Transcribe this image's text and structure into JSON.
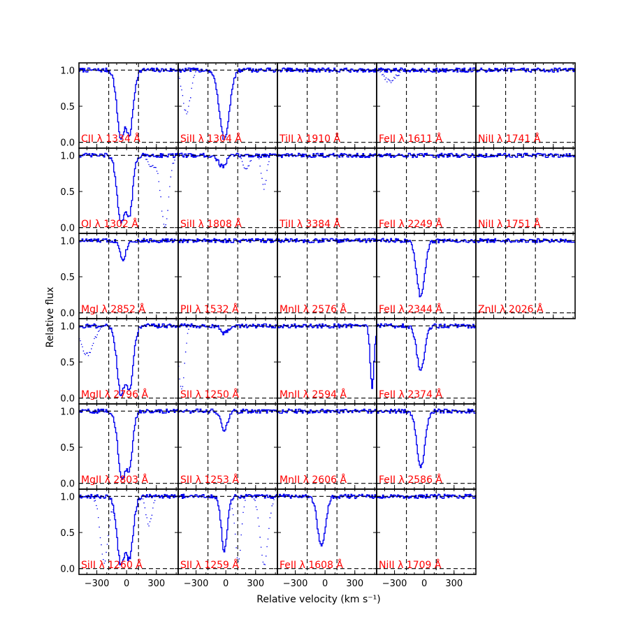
{
  "chart_data": {
    "type": "line",
    "xlabel": "Relative velocity (km s⁻¹)",
    "ylabel": "Relative flux",
    "xlim": [
      -480,
      520
    ],
    "ylim": [
      -0.08,
      1.1
    ],
    "xticks": [
      -300,
      0,
      300
    ],
    "xtick_labels": [
      "−300",
      "0",
      "300"
    ],
    "yticks": [
      0.0,
      0.5,
      1.0
    ],
    "ytick_labels": [
      "0.0",
      "0.5",
      "1.0"
    ],
    "velocity_window": [
      -180,
      120
    ],
    "series_color": "#0000ee",
    "label_color": "#ff0000",
    "columns": [
      [
        {
          "label": "CII λ 1334 Å",
          "absorption": [
            {
              "v": -60,
              "depth": 0.95,
              "width": 40
            },
            {
              "v": 20,
              "depth": 0.9,
              "width": 40
            }
          ],
          "blend": []
        },
        {
          "label": "OI λ 1302 Å",
          "absorption": [
            {
              "v": -60,
              "depth": 0.95,
              "width": 40
            },
            {
              "v": 20,
              "depth": 0.85,
              "width": 35
            }
          ],
          "blend": [
            {
              "v": 380,
              "depth": 0.98,
              "width": 40
            },
            {
              "v": 250,
              "depth": 0.15,
              "width": 40
            }
          ]
        },
        {
          "label": "MgI λ 2852 Å",
          "absorption": [
            {
              "v": -40,
              "depth": 0.25,
              "width": 30
            }
          ],
          "blend": []
        },
        {
          "label": "MgII λ 2796 Å",
          "absorption": [
            {
              "v": -60,
              "depth": 0.95,
              "width": 40
            },
            {
              "v": 20,
              "depth": 0.9,
              "width": 40
            }
          ],
          "blend": [
            {
              "v": -400,
              "depth": 0.4,
              "width": 60
            }
          ]
        },
        {
          "label": "MgII λ 2803 Å",
          "absorption": [
            {
              "v": -50,
              "depth": 0.95,
              "width": 40
            },
            {
              "v": 20,
              "depth": 0.8,
              "width": 35
            }
          ],
          "blend": []
        },
        {
          "label": "SiII λ 1260 Å",
          "absorption": [
            {
              "v": -60,
              "depth": 0.95,
              "width": 40
            },
            {
              "v": 20,
              "depth": 0.85,
              "width": 40
            }
          ],
          "blend": [
            {
              "v": -230,
              "depth": 0.9,
              "width": 40
            },
            {
              "v": 220,
              "depth": 0.4,
              "width": 30
            }
          ]
        }
      ],
      [
        {
          "label": "SiII λ 1304 Å",
          "absorption": [
            {
              "v": -20,
              "depth": 0.95,
              "width": 50
            }
          ],
          "blend": [
            {
              "v": -400,
              "depth": 0.6,
              "width": 40
            }
          ]
        },
        {
          "label": "SiII λ 1808 Å",
          "absorption": [
            {
              "v": -40,
              "depth": 0.15,
              "width": 40
            }
          ],
          "blend": [
            {
              "v": 380,
              "depth": 0.45,
              "width": 25
            },
            {
              "v": 200,
              "depth": 0.2,
              "width": 30
            }
          ]
        },
        {
          "label": "PII λ 1532 Å",
          "absorption": [],
          "blend": []
        },
        {
          "label": "SII λ 1250 Å",
          "absorption": [
            {
              "v": -20,
              "depth": 0.1,
              "width": 35
            }
          ],
          "blend": [
            {
              "v": -450,
              "depth": 0.9,
              "width": 30
            }
          ]
        },
        {
          "label": "SII λ 1253 Å",
          "absorption": [
            {
              "v": -20,
              "depth": 0.25,
              "width": 35
            }
          ],
          "blend": []
        },
        {
          "label": "SII λ 1259 Å",
          "absorption": [
            {
              "v": -20,
              "depth": 0.75,
              "width": 30
            }
          ],
          "blend": [
            {
              "v": 120,
              "depth": 0.9,
              "width": 30
            },
            {
              "v": 380,
              "depth": 0.95,
              "width": 40
            }
          ]
        }
      ],
      [
        {
          "label": "TiII λ 1910 Å",
          "absorption": [],
          "blend": []
        },
        {
          "label": "TiII λ 3384 Å",
          "absorption": [],
          "blend": []
        },
        {
          "label": "MnII λ 2576 Å",
          "absorption": [],
          "blend": []
        },
        {
          "label": "MnII λ 2594 Å",
          "absorption": [
            {
              "v": 470,
              "depth": 0.85,
              "width": 20
            }
          ],
          "blend": []
        },
        {
          "label": "MnII λ 2606 Å",
          "absorption": [],
          "blend": []
        },
        {
          "label": "FeII λ 1608 Å",
          "absorption": [
            {
              "v": -40,
              "depth": 0.7,
              "width": 40
            }
          ],
          "blend": []
        }
      ],
      [
        {
          "label": "FeII λ 1611 Å",
          "absorption": [],
          "blend": [
            {
              "v": -350,
              "depth": 0.15,
              "width": 60
            }
          ]
        },
        {
          "label": "FeII λ 2249 Å",
          "absorption": [],
          "blend": []
        },
        {
          "label": "FeII λ 2344 Å",
          "absorption": [
            {
              "v": -40,
              "depth": 0.78,
              "width": 40
            }
          ],
          "blend": []
        },
        {
          "label": "FeII λ 2374 Å",
          "absorption": [
            {
              "v": -40,
              "depth": 0.62,
              "width": 40
            }
          ],
          "blend": []
        },
        {
          "label": "FeII λ 2586 Å",
          "absorption": [
            {
              "v": -40,
              "depth": 0.78,
              "width": 40
            }
          ],
          "blend": []
        },
        {
          "label": "NiII λ 1709 Å",
          "absorption": [],
          "blend": []
        }
      ],
      [
        {
          "label": "NiII λ 1741 Å",
          "absorption": [],
          "blend": []
        },
        {
          "label": "NiII λ 1751 Å",
          "absorption": [],
          "blend": []
        },
        {
          "label": "ZnII λ 2026 Å",
          "absorption": [],
          "blend": []
        }
      ]
    ]
  }
}
